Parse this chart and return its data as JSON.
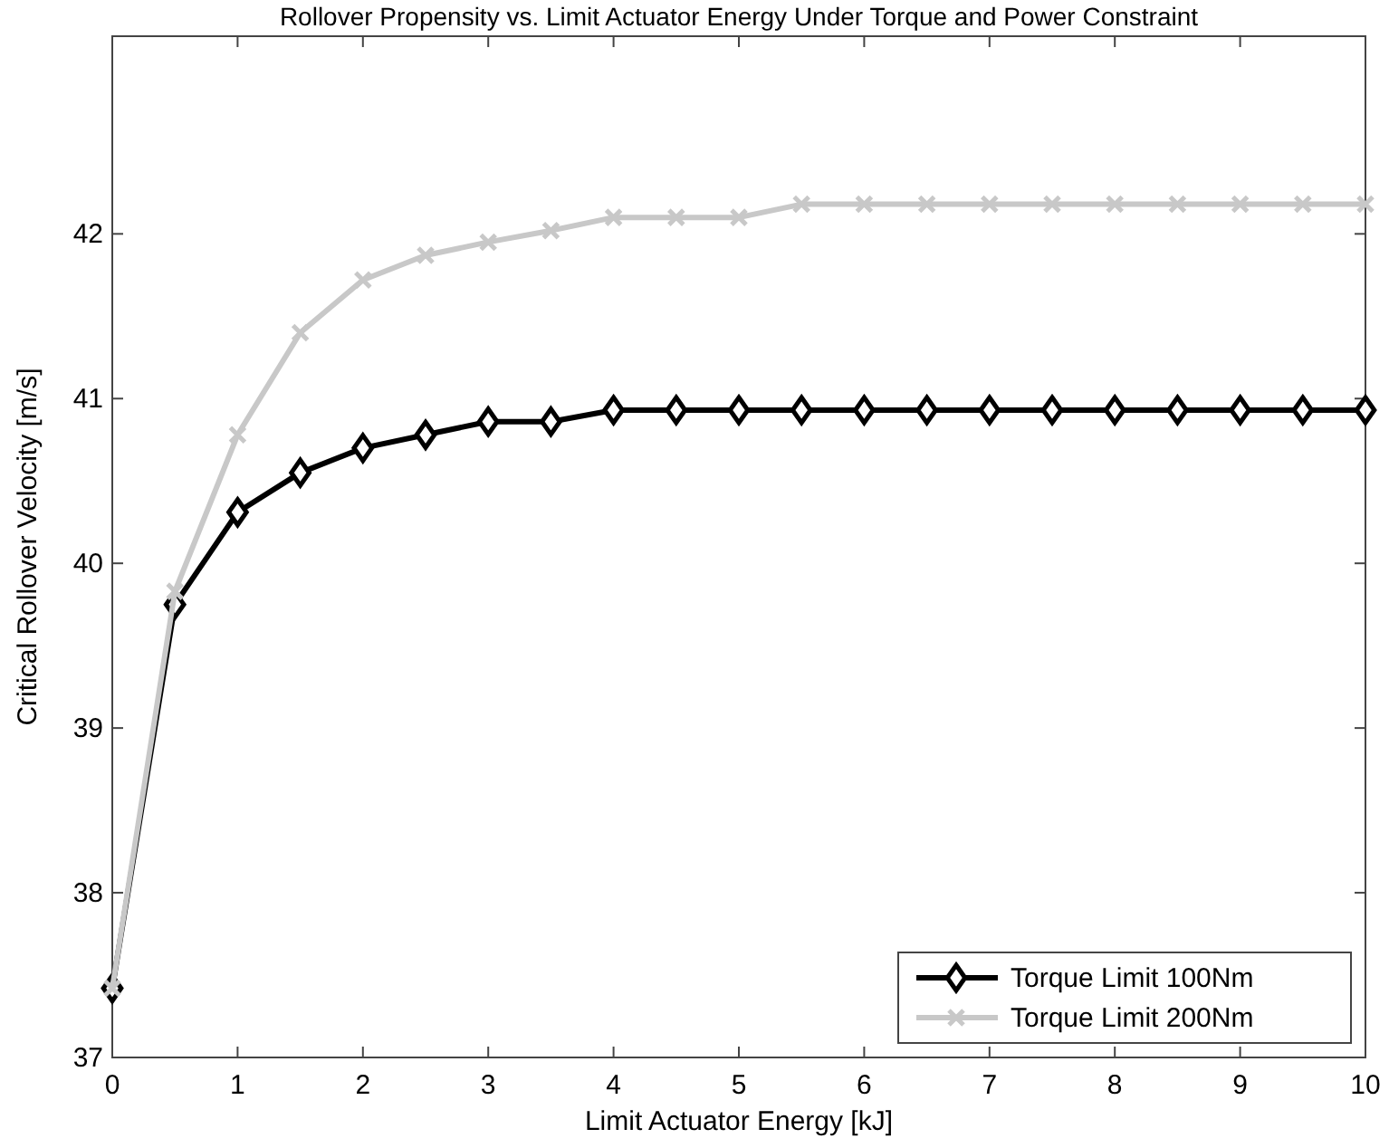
{
  "chart_data": {
    "type": "line",
    "title": "Rollover Propensity vs. Limit Actuator Energy Under Torque and Power Constraint",
    "xlabel": "Limit Actuator Energy [kJ]",
    "ylabel": "Critical Rollover Velocity [m/s]",
    "x": [
      0,
      0.5,
      1,
      1.5,
      2,
      2.5,
      3,
      3.5,
      4,
      4.5,
      5,
      5.5,
      6,
      6.5,
      7,
      7.5,
      8,
      8.5,
      9,
      9.5,
      10
    ],
    "series": [
      {
        "name": "Torque Limit 100Nm",
        "color": "#000000",
        "marker": "diamond",
        "values": [
          37.42,
          39.75,
          40.31,
          40.55,
          40.7,
          40.78,
          40.86,
          40.86,
          40.93,
          40.93,
          40.93,
          40.93,
          40.93,
          40.93,
          40.93,
          40.93,
          40.93,
          40.93,
          40.93,
          40.93,
          40.93
        ]
      },
      {
        "name": "Torque Limit 200Nm",
        "color": "#c8c8c8",
        "marker": "cross",
        "values": [
          37.42,
          39.83,
          40.78,
          41.4,
          41.72,
          41.87,
          41.95,
          42.02,
          42.1,
          42.1,
          42.1,
          42.18,
          42.18,
          42.18,
          42.18,
          42.18,
          42.18,
          42.18,
          42.18,
          42.18,
          42.18
        ]
      }
    ],
    "xlim": [
      0,
      10
    ],
    "xticks": [
      0,
      1,
      2,
      3,
      4,
      5,
      6,
      7,
      8,
      9,
      10
    ],
    "ylim": [
      37,
      43.2
    ],
    "yticks": [
      37,
      38,
      39,
      40,
      41,
      42
    ],
    "grid": false,
    "legend": "bottom right",
    "line_style": "solid"
  }
}
